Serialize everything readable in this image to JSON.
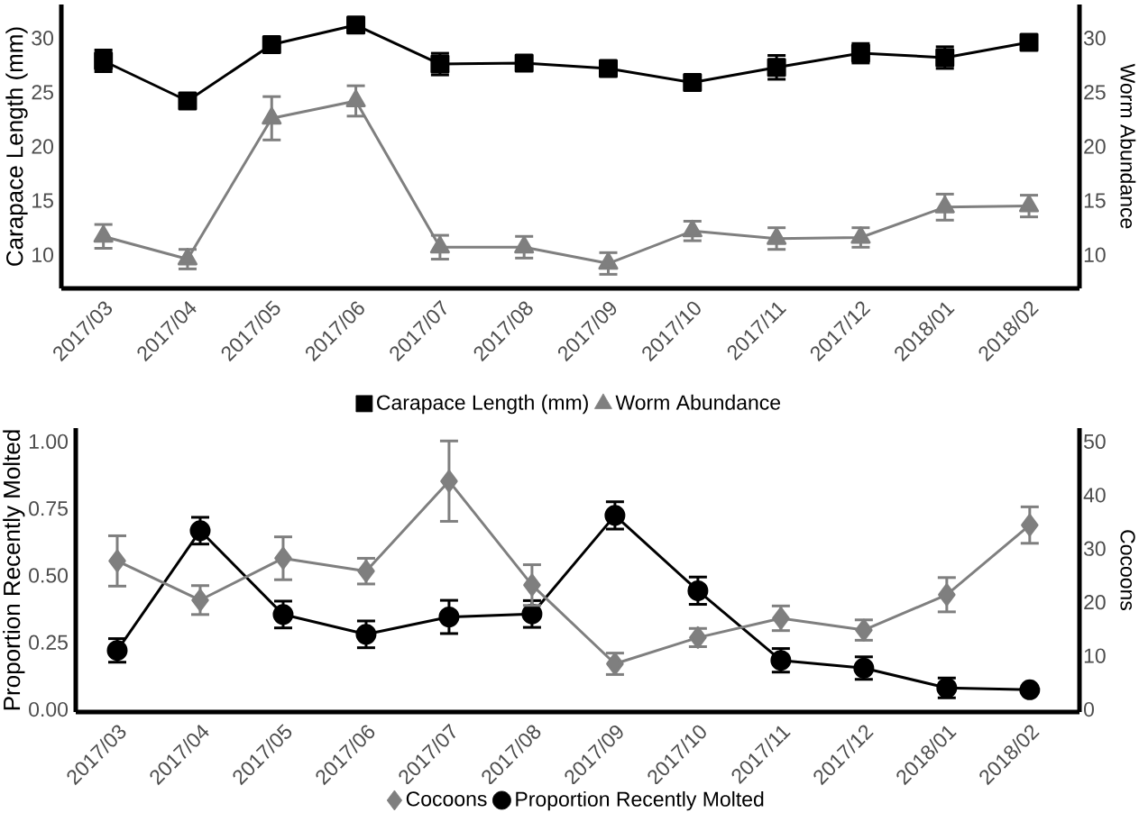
{
  "chart_data": [
    {
      "type": "line",
      "categories": [
        "2017/03",
        "2017/04",
        "2017/05",
        "2017/06",
        "2017/07",
        "2017/08",
        "2017/09",
        "2017/10",
        "2017/11",
        "2017/12",
        "2018/01",
        "2018/02"
      ],
      "ylabel": "Carapace Length (mm)",
      "y2label": "Worm Abundance",
      "ylim": [
        6.9,
        33.1
      ],
      "yticks": [
        10,
        15,
        20,
        25,
        30
      ],
      "y2lim": [
        6.9,
        33.1
      ],
      "y2ticks": [
        10,
        15,
        20,
        25,
        30
      ],
      "legend": "bottom",
      "series": [
        {
          "name": "Carapace Length (mm)",
          "color": "#000000",
          "marker": "square",
          "values": [
            27.9,
            24.2,
            29.4,
            31.2,
            27.6,
            27.7,
            27.2,
            25.9,
            27.3,
            28.6,
            28.2,
            29.6
          ],
          "errors": [
            1.0,
            null,
            null,
            null,
            1.0,
            null,
            null,
            null,
            1.1,
            0.9,
            1.0,
            null
          ]
        },
        {
          "name": "Worm Abundance",
          "color": "#7f7f7f",
          "marker": "triangle",
          "axis": "y2",
          "values": [
            11.7,
            9.6,
            22.6,
            24.2,
            10.7,
            10.7,
            9.2,
            12.2,
            11.5,
            11.6,
            14.4,
            14.5
          ],
          "errors": [
            1.1,
            0.9,
            2.0,
            1.4,
            1.1,
            1.0,
            1.0,
            0.9,
            1.0,
            0.9,
            1.2,
            1.0
          ]
        }
      ]
    },
    {
      "type": "line",
      "categories": [
        "2017/03",
        "2017/04",
        "2017/05",
        "2017/06",
        "2017/07",
        "2017/08",
        "2017/09",
        "2017/10",
        "2017/11",
        "2017/12",
        "2018/01",
        "2018/02"
      ],
      "ylabel": "Proportion Recently Molted",
      "y2label": "Cocoons",
      "ylim": [
        -0.01,
        1.05
      ],
      "yticks": [
        {
          "value": 0,
          "label": "0.00"
        },
        0.25,
        {
          "value": 0.5,
          "label": "0.50"
        },
        0.75,
        {
          "value": 1,
          "label": "1.00"
        }
      ],
      "y2lim": [
        -0.5,
        52.5
      ],
      "y2ticks": [
        0,
        10,
        20,
        30,
        40,
        50
      ],
      "legend": "bottom",
      "series": [
        {
          "name": "Cocoons",
          "color": "#7f7f7f",
          "marker": "diamond",
          "axis": "y2",
          "values": [
            27.7,
            20.4,
            28.2,
            25.8,
            42.6,
            23.2,
            8.5,
            13.4,
            17.0,
            14.8,
            21.4,
            34.4
          ],
          "errors": [
            4.7,
            2.7,
            4.0,
            2.4,
            7.5,
            3.8,
            2.0,
            1.7,
            2.3,
            1.9,
            3.2,
            3.4
          ]
        },
        {
          "name": "Proportion Recently Molted",
          "color": "#000000",
          "marker": "circle",
          "values": [
            0.22,
            0.667,
            0.354,
            0.28,
            0.345,
            0.356,
            0.724,
            0.443,
            0.183,
            0.154,
            0.08,
            0.073
          ],
          "errors": [
            0.044,
            0.05,
            0.05,
            0.05,
            0.062,
            0.05,
            0.051,
            0.051,
            0.044,
            0.042,
            0.037,
            null
          ]
        }
      ]
    }
  ]
}
